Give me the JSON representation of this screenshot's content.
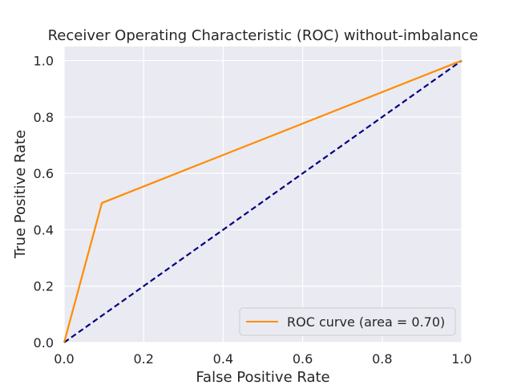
{
  "chart_data": {
    "type": "line",
    "title": "Receiver Operating Characteristic (ROC) without-imbalance",
    "xlabel": "False Positive Rate",
    "ylabel": "True Positive Rate",
    "xlim": [
      0.0,
      1.0
    ],
    "ylim": [
      0.0,
      1.05
    ],
    "xticks": [
      0.0,
      0.2,
      0.4,
      0.6,
      0.8,
      1.0
    ],
    "yticks": [
      0.0,
      0.2,
      0.4,
      0.6,
      0.8,
      1.0
    ],
    "xtick_labels": [
      "0.0",
      "0.2",
      "0.4",
      "0.6",
      "0.8",
      "1.0"
    ],
    "ytick_labels": [
      "0.0",
      "0.2",
      "0.4",
      "0.6",
      "0.8",
      "1.0"
    ],
    "grid": true,
    "legend_position": "lower-right",
    "series": [
      {
        "name": "ROC curve (area = 0.70)",
        "color": "#ff8c00",
        "style": "solid",
        "x": [
          0.0,
          0.095,
          1.0
        ],
        "y": [
          0.0,
          0.495,
          1.0
        ]
      },
      {
        "color": "#000080",
        "style": "dashed",
        "x": [
          0.0,
          1.0
        ],
        "y": [
          0.0,
          1.0
        ]
      }
    ]
  }
}
